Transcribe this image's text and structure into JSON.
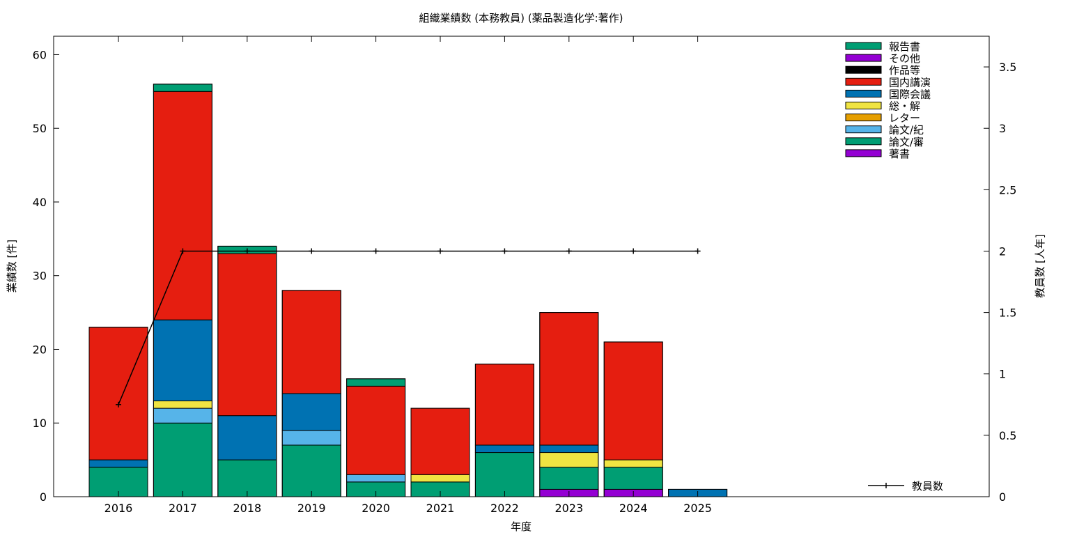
{
  "chart_data": {
    "type": "bar",
    "stacked": true,
    "title": "組織業績数 (本務教員) (薬品製造化学:著作)",
    "xlabel": "年度",
    "ylabel": "業績数 [件]",
    "y2label": "教員数 [人年]",
    "categories": [
      "2016",
      "2017",
      "2018",
      "2019",
      "2020",
      "2021",
      "2022",
      "2023",
      "2024",
      "2025"
    ],
    "ylim": [
      0,
      62.5
    ],
    "yticks": [
      0,
      10,
      20,
      30,
      40,
      50,
      60
    ],
    "y2lim": [
      0,
      3.75
    ],
    "y2ticks": [
      "0",
      "0.5",
      "1",
      "1.5",
      "2",
      "2.5",
      "3",
      "3.5"
    ],
    "grid": false,
    "legend_position": "top-right",
    "series": [
      {
        "name": "著書",
        "color": "#9400d3",
        "values": [
          0,
          0,
          0,
          0,
          0,
          0,
          0,
          1,
          1,
          0
        ]
      },
      {
        "name": "論文/審",
        "color": "#009e73",
        "values": [
          4,
          10,
          5,
          7,
          2,
          2,
          6,
          3,
          3,
          0
        ]
      },
      {
        "name": "論文/紀",
        "color": "#56b4e9",
        "values": [
          0,
          2,
          0,
          2,
          1,
          0,
          0,
          0,
          0,
          0
        ]
      },
      {
        "name": "レター",
        "color": "#e69f00",
        "values": [
          0,
          0,
          0,
          0,
          0,
          0,
          0,
          0,
          0,
          0
        ]
      },
      {
        "name": "総・解",
        "color": "#f0e442",
        "values": [
          0,
          1,
          0,
          0,
          0,
          1,
          0,
          2,
          1,
          0
        ]
      },
      {
        "name": "国際会議",
        "color": "#0072b2",
        "values": [
          1,
          11,
          6,
          5,
          0,
          0,
          1,
          1,
          0,
          1
        ]
      },
      {
        "name": "国内講演",
        "color": "#e51e10",
        "values": [
          18,
          31,
          22,
          14,
          12,
          9,
          11,
          18,
          16,
          0
        ]
      },
      {
        "name": "作品等",
        "color": "#000000",
        "values": [
          0,
          0,
          0,
          0,
          0,
          0,
          0,
          0,
          0,
          0
        ]
      },
      {
        "name": "その他",
        "color": "#9400d3",
        "values": [
          0,
          0,
          0,
          0,
          0,
          0,
          0,
          0,
          0,
          0
        ]
      },
      {
        "name": "報告書",
        "color": "#009e73",
        "values": [
          0,
          1,
          1,
          0,
          1,
          0,
          0,
          0,
          0,
          0
        ]
      }
    ],
    "legend_order": [
      "報告書",
      "その他",
      "作品等",
      "国内講演",
      "国際会議",
      "総・解",
      "レター",
      "論文/紀",
      "論文/審",
      "著書"
    ],
    "line_series": {
      "name": "教員数",
      "axis": "y2",
      "color": "#000000",
      "x": [
        "2016",
        "2017",
        "2018",
        "2019",
        "2020",
        "2021",
        "2022",
        "2023",
        "2024",
        "2025"
      ],
      "values": [
        0.75,
        2,
        2,
        2,
        2,
        2,
        2,
        2,
        2,
        2
      ]
    }
  }
}
